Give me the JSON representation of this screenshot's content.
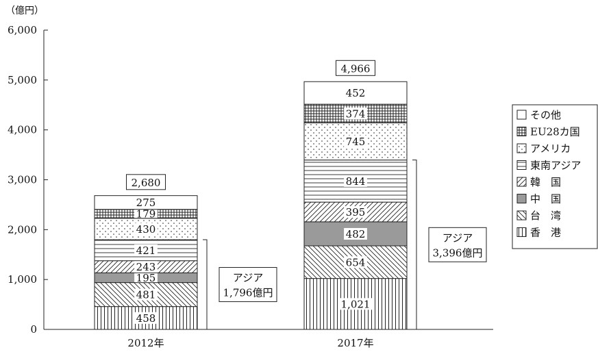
{
  "chart_data": {
    "type": "bar",
    "stacked": true,
    "unit_label": "（億円）",
    "categories": [
      "2012年",
      "2017年"
    ],
    "ylim": [
      0,
      6000
    ],
    "yticks": [
      0,
      1000,
      2000,
      3000,
      4000,
      5000,
      6000
    ],
    "ytick_labels": [
      "0",
      "1,000",
      "2,000",
      "3,000",
      "4,000",
      "5,000",
      "6,000"
    ],
    "series": [
      {
        "name": "香　港",
        "pattern": "vertical",
        "values": [
          458,
          1021
        ],
        "labels": [
          "458",
          "1,021"
        ]
      },
      {
        "name": "台　湾",
        "pattern": "backslash",
        "values": [
          481,
          654
        ],
        "labels": [
          "481",
          "654"
        ]
      },
      {
        "name": "中　国",
        "pattern": "gray",
        "values": [
          195,
          482
        ],
        "labels": [
          "195",
          "482"
        ]
      },
      {
        "name": "韓　国",
        "pattern": "slash",
        "values": [
          243,
          395
        ],
        "labels": [
          "243",
          "395"
        ]
      },
      {
        "name": "東南アジア",
        "pattern": "horizontal",
        "values": [
          421,
          844
        ],
        "labels": [
          "421",
          "844"
        ]
      },
      {
        "name": "アメリカ",
        "pattern": "dots",
        "values": [
          430,
          745
        ],
        "labels": [
          "430",
          "745"
        ]
      },
      {
        "name": "EU28カ国",
        "pattern": "grid",
        "values": [
          179,
          374
        ],
        "labels": [
          "179",
          "374"
        ]
      },
      {
        "name": "その他",
        "pattern": "blank",
        "values": [
          275,
          452
        ],
        "labels": [
          "275",
          "452"
        ]
      }
    ],
    "totals": [
      2680,
      4966
    ],
    "total_labels": [
      "2,680",
      "4,966"
    ],
    "asia_annotation": [
      {
        "line1": "アジア",
        "line2": "1,796億円"
      },
      {
        "line1": "アジア",
        "line2": "3,396億円"
      }
    ],
    "legend_position": "right",
    "grid": false
  }
}
